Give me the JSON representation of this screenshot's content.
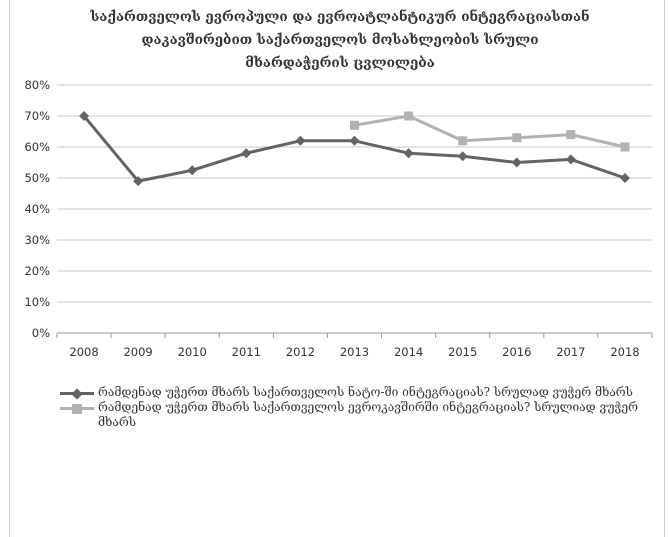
{
  "chart_data": {
    "type": "line",
    "title_lines": [
      "საქართველოს ევროპული და ევროატლანტიკურ ინტეგრაციასთან",
      "დაკავშირებით საქართველოს მოსახლეობის სრული",
      "მხარდაჭერის ცვლილება"
    ],
    "x": [
      "2008",
      "2009",
      "2010",
      "2011",
      "2012",
      "2013",
      "2014",
      "2015",
      "2016",
      "2017",
      "2018"
    ],
    "y_ticks": [
      "0%",
      "10%",
      "20%",
      "30%",
      "40%",
      "50%",
      "60%",
      "70%",
      "80%"
    ],
    "ylim": [
      0,
      80
    ],
    "grid": true,
    "legend_position": "bottom",
    "series": [
      {
        "name": "რამდენად უჭერთ მხარს საქართველოს ნატო-ში ინტეგრაციას? სრულად ვუჭერ მხარს",
        "color": "#636363",
        "marker": "diamond",
        "values": [
          70,
          49,
          52.5,
          58,
          62,
          62,
          58,
          57,
          55,
          56,
          50
        ]
      },
      {
        "name": "რამდენად უჭერთ მხარს საქართველოს ევროკავშირში ინტეგრაციას? სრულიად ვუჭერ მხარს",
        "color": "#b2b2b2",
        "marker": "square",
        "values": [
          null,
          null,
          null,
          null,
          null,
          67,
          70,
          62,
          63,
          64,
          60
        ]
      }
    ]
  }
}
